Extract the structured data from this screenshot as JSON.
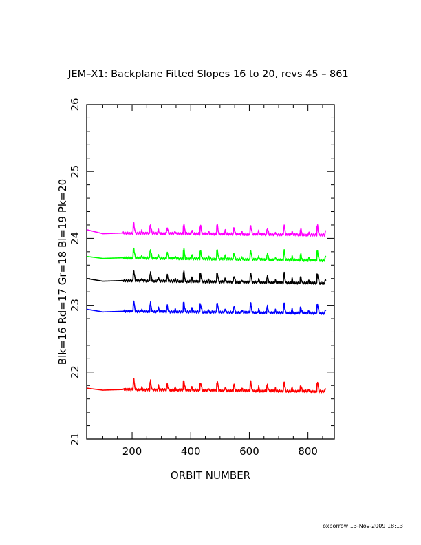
{
  "chart_data": {
    "type": "line",
    "title": "JEM–X1: Backplane Fitted Slopes 16 to 20, revs 45 – 861",
    "xlabel": "ORBIT NUMBER",
    "ylabel": "Blk=16 Rd=17 Gr=18 Bl=19 Pk=20",
    "xlim": [
      45,
      890
    ],
    "ylim": [
      21,
      26
    ],
    "xticks": [
      200,
      400,
      600,
      800
    ],
    "yticks": [
      21,
      22,
      23,
      24,
      25,
      26
    ],
    "grid": false,
    "x_start": 45,
    "x_end": 861,
    "period": 57,
    "first_peak": 205,
    "series": [
      {
        "color": "#ff00ff",
        "start": 24.13,
        "min": 24.07,
        "base": 24.08,
        "end": 24.05
      },
      {
        "color": "#00ff00",
        "start": 23.73,
        "min": 23.7,
        "base": 23.71,
        "end": 23.67
      },
      {
        "color": "#000000",
        "start": 23.4,
        "min": 23.36,
        "base": 23.37,
        "end": 23.33
      },
      {
        "color": "#0000ff",
        "start": 22.94,
        "min": 22.9,
        "base": 22.91,
        "end": 22.88
      },
      {
        "color": "#ff0000",
        "start": 21.76,
        "min": 21.73,
        "base": 21.74,
        "end": 21.71
      }
    ],
    "peak_heights": [
      0.21,
      0.18,
      0.12,
      0.2,
      0.17,
      0.2,
      0.13,
      0.19,
      0.13,
      0.19,
      0.12,
      0.2,
      0.15,
      0.13,
      0.15
    ]
  },
  "footer": "oxborrow 13-Nov-2009 18:13"
}
